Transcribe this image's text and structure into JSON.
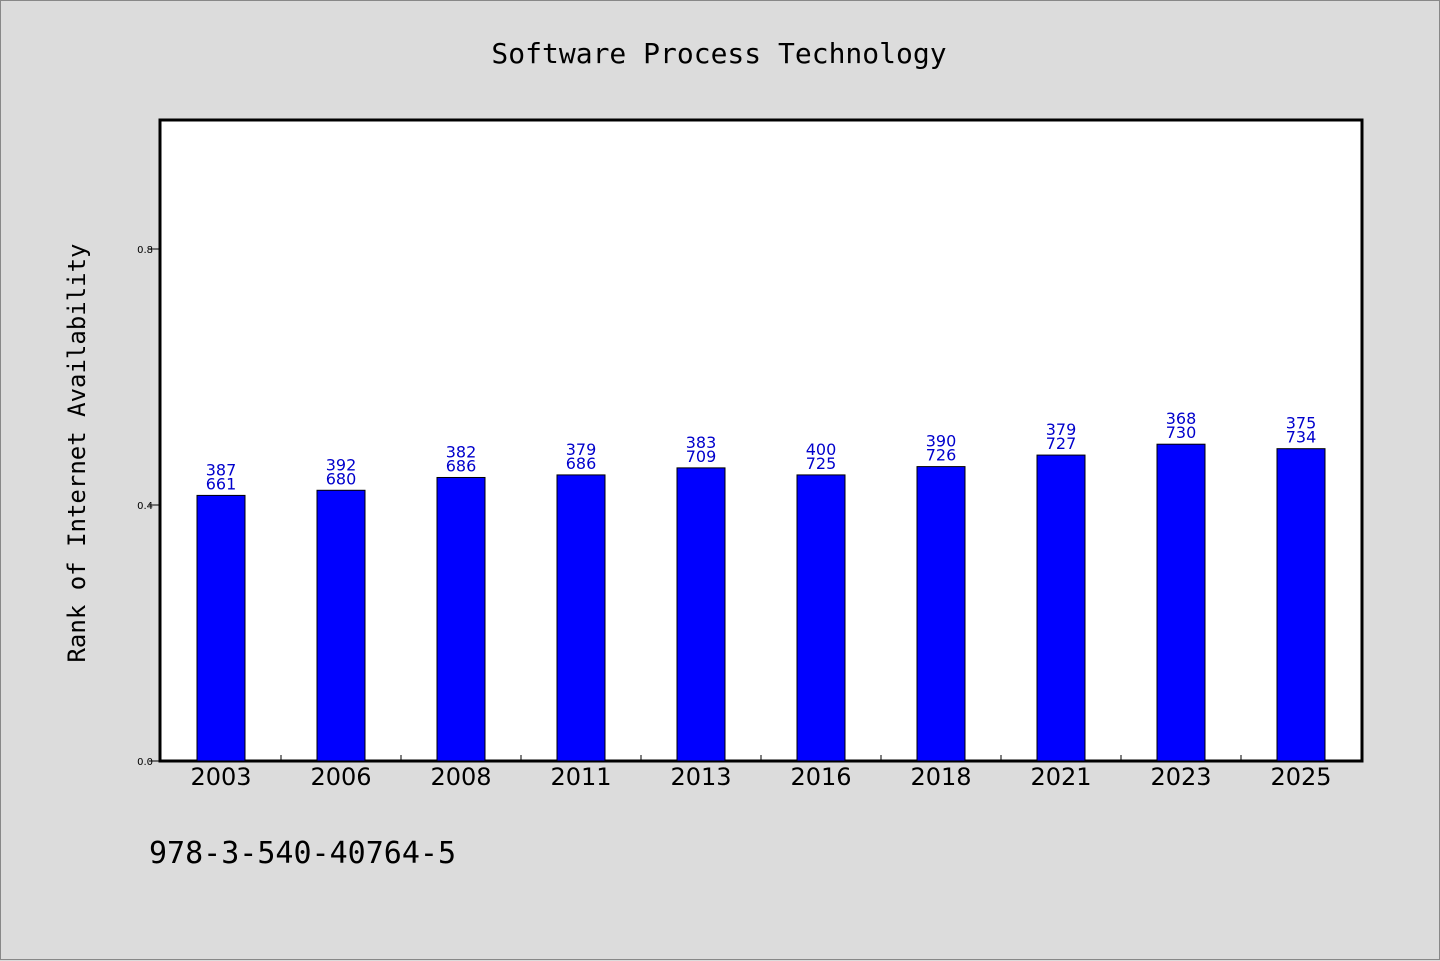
{
  "chart_data": {
    "type": "bar",
    "title": "Software Process Technology",
    "xlabel": "",
    "ylabel": "Rank of Internet Availability",
    "categories": [
      "2003",
      "2006",
      "2008",
      "2011",
      "2013",
      "2016",
      "2018",
      "2021",
      "2023",
      "2025"
    ],
    "values": [
      0.415,
      0.423,
      0.443,
      0.447,
      0.458,
      0.447,
      0.46,
      0.478,
      0.495,
      0.488
    ],
    "data_labels": [
      [
        "387",
        "661"
      ],
      [
        "392",
        "680"
      ],
      [
        "382",
        "686"
      ],
      [
        "379",
        "686"
      ],
      [
        "383",
        "709"
      ],
      [
        "400",
        "725"
      ],
      [
        "390",
        "726"
      ],
      [
        "379",
        "727"
      ],
      [
        "368",
        "730"
      ],
      [
        "375",
        "734"
      ]
    ],
    "ylim": [
      0,
      1.0
    ],
    "yticks": [
      0.0,
      0.4,
      0.8
    ],
    "ytick_labels": [
      "0.0",
      "0.4",
      "0.8"
    ],
    "grid": false,
    "bar_color": "#0000ff",
    "label_color": "#0000cc"
  },
  "footer": {
    "isbn": "978-3-540-40764-5"
  }
}
